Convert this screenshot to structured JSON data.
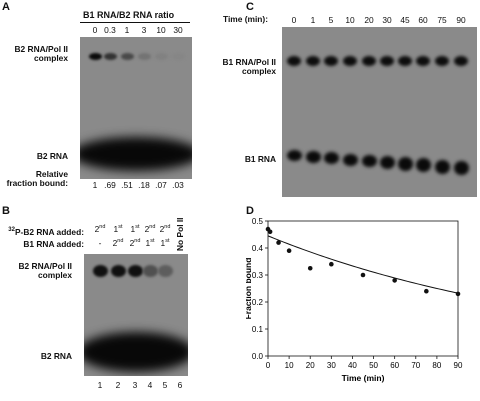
{
  "panels": {
    "A": {
      "letter": "A",
      "header": "B1 RNA/B2 RNA ratio",
      "ratios": [
        "0",
        "0.3",
        "1",
        "3",
        "10",
        "30"
      ],
      "complex_label": [
        "B2 RNA/Pol II",
        "complex"
      ],
      "free_label": "B2 RNA",
      "fraction_label": [
        "Relative",
        "fraction bound:"
      ],
      "fractions": [
        "1",
        ".69",
        ".51",
        ".18",
        ".07",
        ".03"
      ],
      "band_intensity": [
        1,
        0.69,
        0.51,
        0.18,
        0.07,
        0.03
      ]
    },
    "B": {
      "letter": "B",
      "row1_label": "P-B2 RNA added:",
      "row1_super": "32",
      "row1_values": [
        [
          "2",
          "nd"
        ],
        [
          "1",
          "st"
        ],
        [
          "1",
          "st"
        ],
        [
          "2",
          "nd"
        ],
        [
          "2",
          "nd"
        ]
      ],
      "row2_label": "B1 RNA added:",
      "row2_values": [
        [
          "-",
          ""
        ],
        [
          "2",
          "nd"
        ],
        [
          "2",
          "nd"
        ],
        [
          "1",
          "st"
        ],
        [
          "1",
          "st"
        ]
      ],
      "no_pol": "No Pol II",
      "complex_label": [
        "B2 RNA/Pol II",
        "complex"
      ],
      "free_label": "B2 RNA",
      "lanes": [
        "1",
        "2",
        "3",
        "4",
        "5",
        "6"
      ],
      "band_intensity": [
        0.95,
        0.95,
        0.95,
        0.45,
        0.35,
        0
      ]
    },
    "C": {
      "letter": "C",
      "time_label": "Time (min):",
      "times": [
        "0",
        "1",
        "5",
        "10",
        "20",
        "30",
        "45",
        "60",
        "75",
        "90"
      ],
      "complex_label": [
        "B1 RNA/Pol II",
        "complex"
      ],
      "free_label": "B1 RNA"
    },
    "D": {
      "letter": "D"
    }
  },
  "chart_data": {
    "type": "scatter",
    "title": "",
    "xlabel": "Time (min)",
    "ylabel": "Fraction bound",
    "xlim": [
      0,
      90
    ],
    "ylim": [
      0,
      0.5
    ],
    "xticks": [
      "0",
      "10",
      "20",
      "30",
      "40",
      "50",
      "60",
      "70",
      "80",
      "90"
    ],
    "yticks": [
      "0.0",
      "0.1",
      "0.2",
      "0.3",
      "0.4",
      "0.5"
    ],
    "grid": false,
    "points": [
      {
        "x": 0,
        "y": 0.47
      },
      {
        "x": 1,
        "y": 0.46
      },
      {
        "x": 5,
        "y": 0.42
      },
      {
        "x": 10,
        "y": 0.39
      },
      {
        "x": 20,
        "y": 0.325
      },
      {
        "x": 30,
        "y": 0.34
      },
      {
        "x": 45,
        "y": 0.3
      },
      {
        "x": 60,
        "y": 0.28
      },
      {
        "x": 75,
        "y": 0.24
      },
      {
        "x": 90,
        "y": 0.23
      }
    ],
    "fit_curve": {
      "type": "exponential",
      "y0": 0.445,
      "k": 0.0072
    }
  }
}
